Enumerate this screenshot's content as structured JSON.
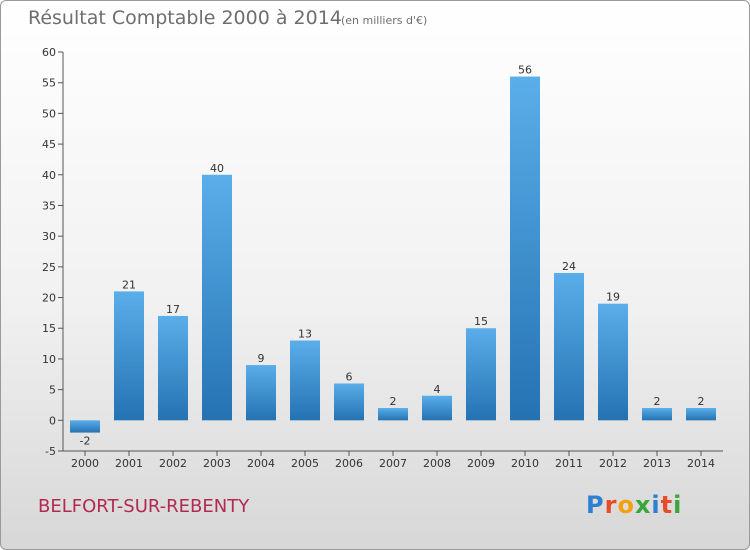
{
  "header": {
    "title": "Résultat Comptable 2000 à 2014",
    "unit": "(en milliers d'€)"
  },
  "footer": {
    "place": "BELFORT-SUR-REBENTY",
    "logo_letters": [
      "P",
      "r",
      "o",
      "x",
      "i",
      "t",
      "i"
    ],
    "logo_colors": [
      "#2f7fd0",
      "#e84b2a",
      "#f2a10d",
      "#38a53d",
      "#2f7fd0",
      "#e84b2a",
      "#38a53d"
    ]
  },
  "colors": {
    "bar_top": "#5aaeea",
    "bar_bottom": "#2572b2"
  },
  "chart_data": {
    "type": "bar",
    "categories": [
      "2000",
      "2001",
      "2002",
      "2003",
      "2004",
      "2005",
      "2006",
      "2007",
      "2008",
      "2009",
      "2010",
      "2011",
      "2012",
      "2013",
      "2014"
    ],
    "values": [
      -2,
      21,
      17,
      40,
      9,
      13,
      6,
      2,
      4,
      15,
      56,
      24,
      19,
      2,
      2
    ],
    "title": "Résultat Comptable 2000 à 2014",
    "xlabel": "",
    "ylabel": "",
    "ylim": [
      -5,
      60
    ],
    "yticks": [
      -5,
      0,
      5,
      10,
      15,
      20,
      25,
      30,
      35,
      40,
      45,
      50,
      55,
      60
    ],
    "grid": false,
    "data_labels": true
  }
}
